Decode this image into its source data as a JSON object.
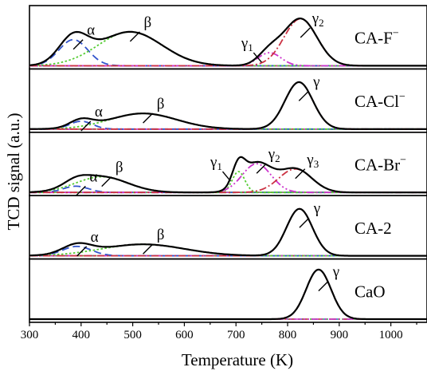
{
  "chart_data": {
    "type": "line",
    "xlabel": "Temperature (K)",
    "ylabel": "TCD signal (a.u.)",
    "xlim": [
      300,
      1070
    ],
    "xticks": [
      "300",
      "400",
      "500",
      "600",
      "700",
      "800",
      "900",
      "1000"
    ],
    "grid": false,
    "colors": {
      "total": "#000000",
      "alpha": "#3355cc",
      "beta": "#55cc33",
      "gamma1": "#cc3344",
      "gamma2": "#cc33cc",
      "gamma3": "#cc33cc"
    },
    "panels": [
      {
        "sample": "CA-F",
        "sample_sup": "−",
        "peaks": [
          {
            "label": "α",
            "sub": "",
            "center": 385,
            "width": 28,
            "height": 0.5,
            "role": "alpha"
          },
          {
            "label": "β",
            "sub": "",
            "center": 495,
            "width": 62,
            "height": 0.65,
            "role": "beta"
          },
          {
            "label": "γ",
            "sub": "1",
            "center": 765,
            "width": 22,
            "height": 0.25,
            "role": "gamma2"
          },
          {
            "label": "γ",
            "sub": "2",
            "center": 825,
            "width": 32,
            "height": 0.9,
            "role": "gamma1"
          }
        ]
      },
      {
        "sample": "CA-Cl",
        "sample_sup": "−",
        "peaks": [
          {
            "label": "α",
            "sub": "",
            "center": 400,
            "width": 22,
            "height": 0.15,
            "role": "alpha"
          },
          {
            "label": "β",
            "sub": "",
            "center": 520,
            "width": 65,
            "height": 0.3,
            "role": "beta"
          },
          {
            "label": "γ",
            "sub": "",
            "center": 822,
            "width": 27,
            "height": 0.9,
            "role": "gamma1"
          }
        ]
      },
      {
        "sample": "CA-Br",
        "sample_sup": "−",
        "peaks": [
          {
            "label": "α",
            "sub": "",
            "center": 390,
            "width": 24,
            "height": 0.12,
            "role": "alpha"
          },
          {
            "label": "β",
            "sub": "",
            "center": 440,
            "width": 50,
            "height": 0.3,
            "role": "beta"
          },
          {
            "label": "γ",
            "sub": "1",
            "center": 705,
            "width": 12,
            "height": 0.4,
            "role": "beta"
          },
          {
            "label": "γ",
            "sub": "2",
            "center": 740,
            "width": 28,
            "height": 0.55,
            "role": "gamma2"
          },
          {
            "label": "γ",
            "sub": "3",
            "center": 815,
            "width": 32,
            "height": 0.45,
            "role": "gamma1"
          }
        ]
      },
      {
        "sample": "CA-2",
        "sample_sup": "",
        "peaks": [
          {
            "label": "α",
            "sub": "",
            "center": 392,
            "width": 28,
            "height": 0.18,
            "role": "alpha"
          },
          {
            "label": "β",
            "sub": "",
            "center": 520,
            "width": 80,
            "height": 0.22,
            "role": "beta"
          },
          {
            "label": "γ",
            "sub": "",
            "center": 823,
            "width": 25,
            "height": 0.9,
            "role": "gamma1"
          }
        ]
      },
      {
        "sample": "CaO",
        "sample_sup": "",
        "peaks": [
          {
            "label": "γ",
            "sub": "",
            "center": 860,
            "width": 24,
            "height": 0.95,
            "role": "gamma1"
          }
        ]
      }
    ]
  }
}
